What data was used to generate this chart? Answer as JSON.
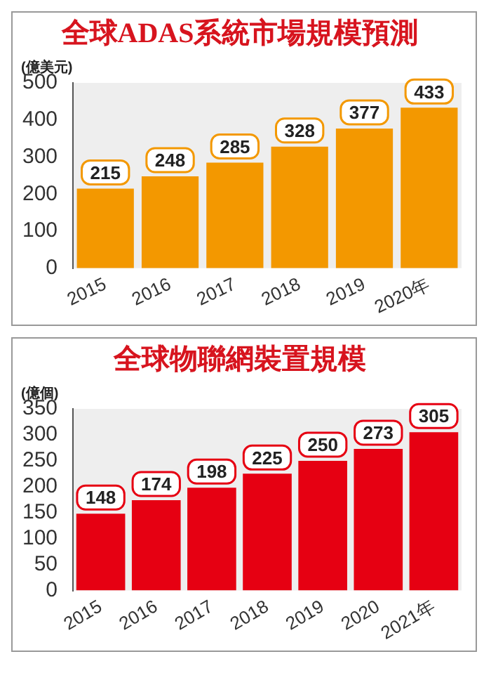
{
  "chart_data": [
    {
      "type": "bar",
      "title": "全球ADAS系統市場規模預測",
      "ylabel": "(億美元)",
      "categories": [
        "2015",
        "2016",
        "2017",
        "2018",
        "2019",
        "2020年"
      ],
      "values": [
        215,
        248,
        285,
        328,
        377,
        433
      ],
      "color": "#f39800",
      "ylim": [
        0,
        500
      ],
      "yticks": [
        0,
        100,
        200,
        300,
        400,
        500
      ],
      "grid": false,
      "legend": false,
      "data_labels": true
    },
    {
      "type": "bar",
      "title": "全球物聯網裝置規模",
      "ylabel": "(億個)",
      "categories": [
        "2015",
        "2016",
        "2017",
        "2018",
        "2019",
        "2020",
        "2021年"
      ],
      "values": [
        148,
        174,
        198,
        225,
        250,
        273,
        305
      ],
      "color": "#e60012",
      "ylim": [
        0,
        350
      ],
      "yticks": [
        0,
        50,
        100,
        150,
        200,
        250,
        300,
        350
      ],
      "grid": false,
      "legend": false,
      "data_labels": true
    }
  ]
}
